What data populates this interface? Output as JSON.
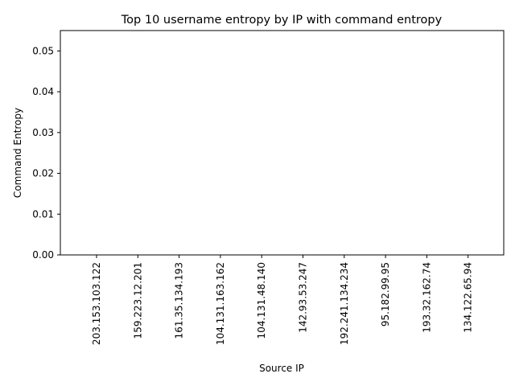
{
  "chart_data": {
    "type": "bar",
    "title": "Top 10 username entropy by IP with command entropy",
    "xlabel": "Source IP",
    "ylabel": "Command Entropy",
    "categories": [
      "203.153.103.122",
      "159.223.12.201",
      "161.35.134.193",
      "104.131.163.162",
      "104.131.48.140",
      "142.93.53.247",
      "192.241.134.234",
      "95.182.99.95",
      "193.32.162.74",
      "134.122.65.94"
    ],
    "values": [
      0,
      0,
      0,
      0,
      0,
      0,
      0,
      0,
      0,
      0
    ],
    "ylim": [
      0,
      0.055
    ],
    "yticks": [
      "0.00",
      "0.01",
      "0.02",
      "0.03",
      "0.04",
      "0.05"
    ],
    "ytick_values": [
      0,
      0.01,
      0.02,
      0.03,
      0.04,
      0.05
    ],
    "grid": false,
    "legend": "none",
    "bar_color": "#1f77b4"
  }
}
